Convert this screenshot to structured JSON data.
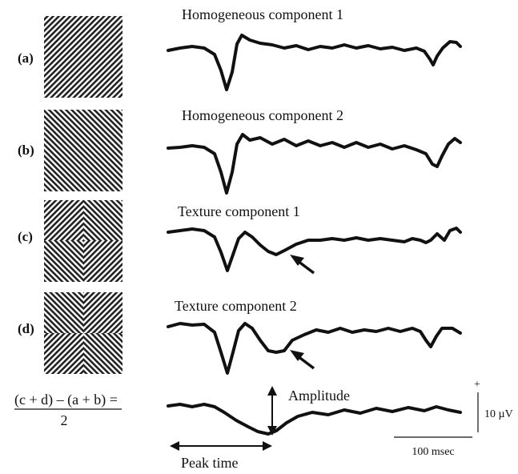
{
  "panels": [
    {
      "label": "(a)",
      "title": "Homogeneous component 1"
    },
    {
      "label": "(b)",
      "title": "Homogeneous component 2"
    },
    {
      "label": "(c)",
      "title": "Texture component 1"
    },
    {
      "label": "(d)",
      "title": "Texture component 2"
    }
  ],
  "difference": {
    "numerator": "(c + d) – (a + b) =",
    "denominator": "2",
    "amplitude_label": "Amplitude",
    "peak_time_label": "Peak time"
  },
  "scale_bar": {
    "polarity": "+",
    "voltage": "10 µV",
    "time": "100 msec"
  }
}
